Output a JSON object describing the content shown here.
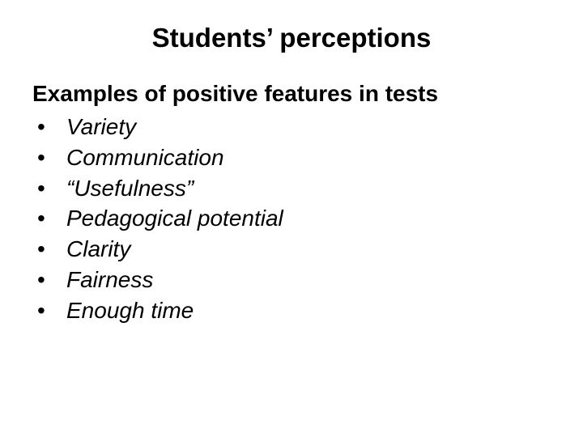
{
  "slide": {
    "title": "Students’ perceptions",
    "subtitle": "Examples of positive features in tests",
    "bullets": [
      "Variety",
      "Communication",
      "“Usefulness”",
      "Pedagogical potential",
      "Clarity",
      "Fairness",
      "Enough time"
    ],
    "colors": {
      "background": "#ffffff",
      "text": "#000000"
    },
    "fonts": {
      "family": "Arial",
      "title_size_pt": 33,
      "body_size_pt": 28
    }
  }
}
